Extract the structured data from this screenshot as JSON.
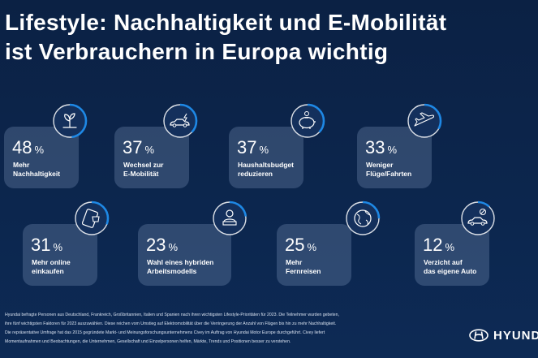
{
  "title": {
    "line1": "Lifestyle: Nachhaltigkeit und E-Mobilität",
    "line2": "ist Verbrauchern in Europa wichtig"
  },
  "cards": [
    {
      "value": "48",
      "unit": "%",
      "label1": "Mehr",
      "label2": "Nachhaltigkeit",
      "icon": "plant-icon",
      "fill": 0.48
    },
    {
      "value": "37",
      "unit": "%",
      "label1": "Wechsel zur",
      "label2": "E-Mobilität",
      "icon": "electric-car-icon",
      "fill": 0.37
    },
    {
      "value": "37",
      "unit": "%",
      "label1": "Haushaltsbudget",
      "label2": "reduzieren",
      "icon": "piggy-bank-icon",
      "fill": 0.37
    },
    {
      "value": "33",
      "unit": "%",
      "label1": "Weniger",
      "label2": "Flüge/Fahrten",
      "icon": "airplane-icon",
      "fill": 0.33
    },
    {
      "value": "31",
      "unit": "%",
      "label1": "Mehr online",
      "label2": "einkaufen",
      "icon": "online-shopping-icon",
      "fill": 0.31
    },
    {
      "value": "23",
      "unit": "%",
      "label1": "Wahl eines hybriden",
      "label2": "Arbeitsmodells",
      "icon": "hybrid-work-icon",
      "fill": 0.23
    },
    {
      "value": "25",
      "unit": "%",
      "label1": "Mehr",
      "label2": "Fernreisen",
      "icon": "globe-icon",
      "fill": 0.25
    },
    {
      "value": "12",
      "unit": "%",
      "label1": "Verzicht auf",
      "label2": "das eigene Auto",
      "icon": "no-car-icon",
      "fill": 0.12
    }
  ],
  "footer": [
    "Hyundai befragte Personen aus Deutschland, Frankreich, Großbritannien, Italien und Spanien nach ihren wichtigsten Lifestyle-Prioritäten für 2023. Die Teilnehmer wurden gebeten,",
    "ihre fünf wichtigsten Faktoren für 2023 auszuwählen. Diese reichen vom Umstieg auf Elektromobilität über die Verringerung der Anzahl von Flügen bis hin zu mehr Nachhaltigkeit.",
    "Die repräsentative Umfrage hat das 2015 gegründete Markt- und Meinungsforschungsunternehmens Civey im Auftrag von Hyundai Motor Europe durchgeführt. Civey liefert",
    "Momentaufnahmen und Beobachtungen, die Unternehmen, Gesellschaft und Einzelpersonen helfen, Märkte, Trends und Positionen besser zu verstehen."
  ],
  "logo": {
    "wordmark": "HYUNDAI",
    "icon": "hyundai-logo-icon"
  },
  "colors": {
    "background": "#0c2447",
    "accent": "#1e88e5",
    "ring_track": "#ffffff"
  }
}
